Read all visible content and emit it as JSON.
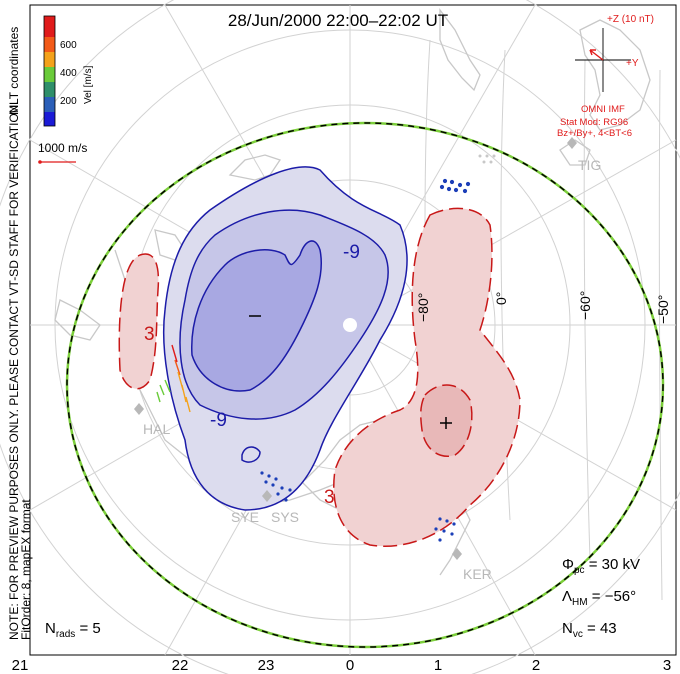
{
  "title": "28/Jun/2000 22:00–22:02 UT",
  "coord_system": "MLT coordinates",
  "colorbar": {
    "axis_label": "Vel [m/s]",
    "ticks": [
      "200",
      "400",
      "600"
    ],
    "colors": [
      "#1b1bd6",
      "#2b5fb8",
      "#2f8f6a",
      "#6acb3a",
      "#f4a21b",
      "#f25a18",
      "#e01b1b"
    ]
  },
  "vector_scale_label": "1000 m/s",
  "imf": {
    "label": "+Z (10 nT)",
    "y_label": "+Y",
    "source": "OMNI IMF",
    "model": "Stat Mod: RG96",
    "condition": "Bz+/By+, 4<BT<6"
  },
  "disclaimer": "NOTE: FOR PREVIEW PURPOSES ONLY. PLEASE CONTACT VT-SD STAFF FOR VERIFICATION.",
  "fit_order": "FitOrder: 8, mapEX format",
  "stats": {
    "phi_pc": "Φpc = 30 kV",
    "lambda_hm": "ΛHM = −56°",
    "n_vc": "Nvc = 43",
    "n_rads": "Nrads = 5"
  },
  "mlt_ticks": [
    "21",
    "22",
    "23",
    "0",
    "1",
    "2",
    "3"
  ],
  "lon_labels": [
    "−80°",
    "0°",
    "−60°",
    "−50°"
  ],
  "stations": [
    "TIG",
    "HAL",
    "SYE",
    "SYS",
    "KER"
  ],
  "contour_labels": [
    "-9",
    "-9",
    "3",
    "3"
  ],
  "colors": {
    "negative_cell": "#1c1ca8",
    "positive_cell": "#c81818",
    "boundary_green": "#7ccf3a",
    "geography": "#c8c8c8"
  }
}
